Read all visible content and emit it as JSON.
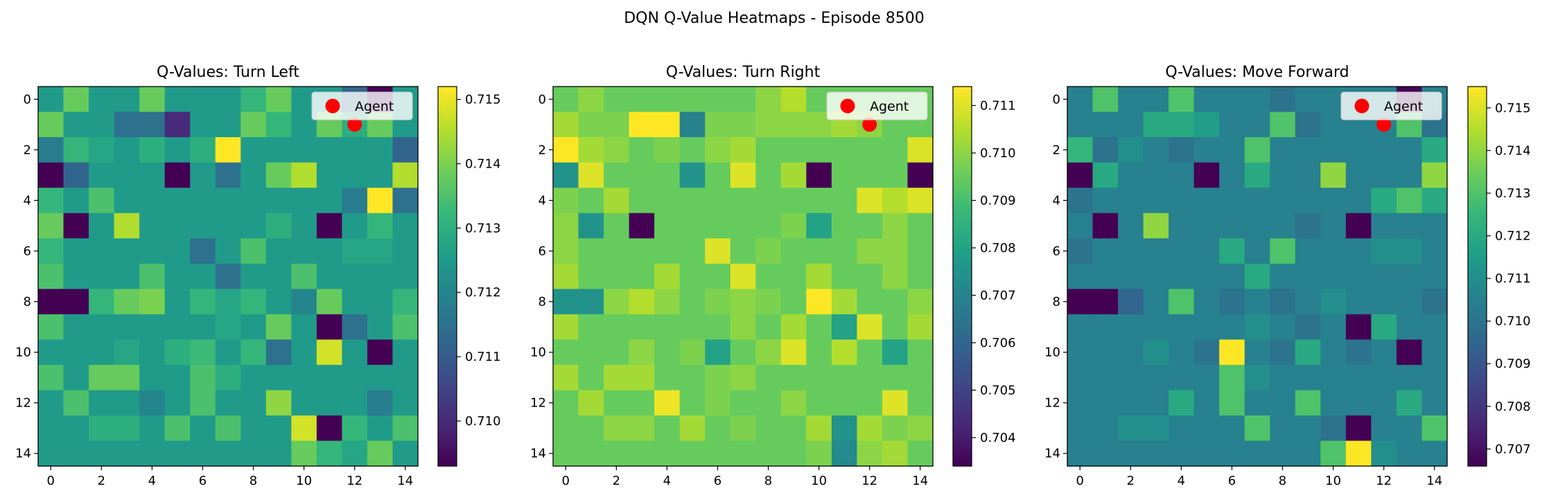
{
  "suptitle": "DQN Q-Value Heatmaps - Episode 8500",
  "legend_label": "Agent",
  "colors": {
    "agent_marker": "#ff0000",
    "frame": "#000000",
    "colormap": "viridis"
  },
  "chart_data": [
    {
      "type": "heatmap",
      "title": "Q-Values: Turn Left",
      "xlabel": "",
      "ylabel": "",
      "x_ticks": [
        0,
        2,
        4,
        6,
        8,
        10,
        12,
        14
      ],
      "y_ticks": [
        0,
        2,
        4,
        6,
        8,
        10,
        12,
        14
      ],
      "colorbar_ticks": [
        0.71,
        0.711,
        0.712,
        0.713,
        0.714,
        0.715
      ],
      "colorbar_ticklabels": [
        "0.710",
        "0.711",
        "0.712",
        "0.713",
        "0.714",
        "0.715"
      ],
      "vmin": 0.7093,
      "vmax": 0.7152,
      "agent_position": {
        "row": 1,
        "col": 12
      },
      "legend": {
        "entries": [
          "Agent"
        ],
        "placement": "upper right"
      },
      "values": [
        [
          0.7125,
          0.7138,
          0.7125,
          0.7125,
          0.7138,
          0.7125,
          0.7125,
          0.7125,
          0.7132,
          0.7138,
          0.7125,
          0.7125,
          0.7112,
          0.7093,
          0.7125
        ],
        [
          0.7138,
          0.7125,
          0.7125,
          0.7115,
          0.7115,
          0.71,
          0.7125,
          0.7125,
          0.7138,
          0.7132,
          0.7125,
          0.7138,
          0.713,
          0.7138,
          0.7125
        ],
        [
          0.7118,
          0.7132,
          0.7128,
          0.7125,
          0.713,
          0.7125,
          0.713,
          0.7152,
          0.7125,
          0.7125,
          0.7125,
          0.7125,
          0.7125,
          0.7125,
          0.7112
        ],
        [
          0.7093,
          0.7112,
          0.7125,
          0.7125,
          0.7125,
          0.7093,
          0.7125,
          0.7115,
          0.7125,
          0.7138,
          0.7145,
          0.7125,
          0.7125,
          0.7125,
          0.7145
        ],
        [
          0.7132,
          0.7125,
          0.7135,
          0.7125,
          0.7125,
          0.7125,
          0.7125,
          0.7125,
          0.7125,
          0.7125,
          0.7125,
          0.7125,
          0.7118,
          0.7152,
          0.7115
        ],
        [
          0.7138,
          0.7093,
          0.7125,
          0.7145,
          0.7125,
          0.7125,
          0.7125,
          0.7125,
          0.7125,
          0.713,
          0.7125,
          0.7093,
          0.7125,
          0.7132,
          0.7125
        ],
        [
          0.7132,
          0.7125,
          0.7125,
          0.7125,
          0.7125,
          0.7125,
          0.7115,
          0.7125,
          0.7135,
          0.7125,
          0.7125,
          0.7125,
          0.7128,
          0.7128,
          0.7125
        ],
        [
          0.7135,
          0.7125,
          0.7125,
          0.7125,
          0.7135,
          0.7125,
          0.7125,
          0.7115,
          0.7125,
          0.7125,
          0.7135,
          0.7125,
          0.7125,
          0.7125,
          0.7125
        ],
        [
          0.7093,
          0.7093,
          0.7132,
          0.7138,
          0.714,
          0.7125,
          0.7132,
          0.7128,
          0.7132,
          0.7125,
          0.712,
          0.7138,
          0.7125,
          0.7125,
          0.7132
        ],
        [
          0.7135,
          0.7125,
          0.7125,
          0.7125,
          0.7125,
          0.7125,
          0.7125,
          0.7128,
          0.7125,
          0.7138,
          0.7125,
          0.7093,
          0.7115,
          0.7125,
          0.7135
        ],
        [
          0.7125,
          0.7125,
          0.7125,
          0.7128,
          0.7125,
          0.713,
          0.7133,
          0.7125,
          0.7132,
          0.7115,
          0.7125,
          0.7148,
          0.7125,
          0.7093,
          0.7125
        ],
        [
          0.7135,
          0.7125,
          0.7138,
          0.7138,
          0.7125,
          0.7125,
          0.7135,
          0.713,
          0.7125,
          0.7125,
          0.7125,
          0.7125,
          0.7125,
          0.7125,
          0.7125
        ],
        [
          0.7125,
          0.7135,
          0.7125,
          0.7125,
          0.712,
          0.7125,
          0.7135,
          0.7125,
          0.7125,
          0.7142,
          0.7125,
          0.7125,
          0.7125,
          0.7118,
          0.7125
        ],
        [
          0.7125,
          0.7125,
          0.713,
          0.713,
          0.7125,
          0.7135,
          0.7125,
          0.7135,
          0.7125,
          0.7125,
          0.7148,
          0.7093,
          0.7132,
          0.7125,
          0.7135
        ],
        [
          0.7125,
          0.7125,
          0.7125,
          0.7125,
          0.7125,
          0.7125,
          0.7125,
          0.7125,
          0.7125,
          0.7125,
          0.7138,
          0.7132,
          0.7128,
          0.7138,
          0.7125
        ]
      ]
    },
    {
      "type": "heatmap",
      "title": "Q-Values: Turn Right",
      "xlabel": "",
      "ylabel": "",
      "x_ticks": [
        0,
        2,
        4,
        6,
        8,
        10,
        12,
        14
      ],
      "y_ticks": [
        0,
        2,
        4,
        6,
        8,
        10,
        12,
        14
      ],
      "colorbar_ticks": [
        0.704,
        0.705,
        0.706,
        0.707,
        0.708,
        0.709,
        0.71,
        0.711
      ],
      "colorbar_ticklabels": [
        "0.704",
        "0.705",
        "0.706",
        "0.707",
        "0.708",
        "0.709",
        "0.710",
        "0.711"
      ],
      "vmin": 0.7034,
      "vmax": 0.7114,
      "agent_position": {
        "row": 1,
        "col": 12
      },
      "legend": {
        "entries": [
          "Agent"
        ],
        "placement": "upper right"
      },
      "values": [
        [
          0.7095,
          0.71,
          0.7095,
          0.7095,
          0.7095,
          0.7095,
          0.7095,
          0.7095,
          0.71,
          0.7105,
          0.7095,
          0.7095,
          0.7095,
          0.7095,
          0.7095
        ],
        [
          0.7103,
          0.7098,
          0.7098,
          0.7114,
          0.7114,
          0.707,
          0.7098,
          0.7098,
          0.71,
          0.71,
          0.71,
          0.7103,
          0.71,
          0.7095,
          0.7095
        ],
        [
          0.7114,
          0.7103,
          0.71,
          0.7095,
          0.7098,
          0.7095,
          0.71,
          0.7103,
          0.7095,
          0.7095,
          0.7095,
          0.7095,
          0.7095,
          0.7095,
          0.711
        ],
        [
          0.7075,
          0.711,
          0.7095,
          0.7095,
          0.7095,
          0.7075,
          0.7095,
          0.711,
          0.7095,
          0.7103,
          0.7034,
          0.7095,
          0.7095,
          0.7095,
          0.7034
        ],
        [
          0.7098,
          0.7095,
          0.7103,
          0.7095,
          0.7095,
          0.7095,
          0.7095,
          0.7095,
          0.7095,
          0.7095,
          0.7095,
          0.7095,
          0.711,
          0.7105,
          0.711
        ],
        [
          0.71,
          0.7075,
          0.7095,
          0.7034,
          0.7095,
          0.7095,
          0.7095,
          0.7095,
          0.7095,
          0.7098,
          0.708,
          0.7095,
          0.7095,
          0.71,
          0.7095
        ],
        [
          0.71,
          0.7095,
          0.7095,
          0.7095,
          0.7095,
          0.7095,
          0.711,
          0.7095,
          0.7098,
          0.7095,
          0.7095,
          0.7095,
          0.71,
          0.71,
          0.7095
        ],
        [
          0.7103,
          0.7095,
          0.7095,
          0.7095,
          0.7103,
          0.7095,
          0.7095,
          0.711,
          0.7095,
          0.7095,
          0.7103,
          0.7095,
          0.7095,
          0.71,
          0.7095
        ],
        [
          0.7075,
          0.7075,
          0.71,
          0.7105,
          0.71,
          0.7095,
          0.7098,
          0.71,
          0.7098,
          0.7095,
          0.7114,
          0.7103,
          0.7095,
          0.7095,
          0.71
        ],
        [
          0.7103,
          0.7095,
          0.7095,
          0.7095,
          0.7095,
          0.7095,
          0.7095,
          0.71,
          0.7095,
          0.7103,
          0.7095,
          0.708,
          0.711,
          0.7095,
          0.7103
        ],
        [
          0.7095,
          0.7095,
          0.7095,
          0.71,
          0.7095,
          0.7098,
          0.708,
          0.7095,
          0.71,
          0.711,
          0.7095,
          0.7105,
          0.7095,
          0.708,
          0.7095
        ],
        [
          0.7103,
          0.7095,
          0.7103,
          0.7103,
          0.7095,
          0.7095,
          0.7098,
          0.71,
          0.7095,
          0.7095,
          0.7095,
          0.7095,
          0.7095,
          0.7095,
          0.7095
        ],
        [
          0.7095,
          0.7103,
          0.7095,
          0.7095,
          0.7112,
          0.7095,
          0.7098,
          0.7095,
          0.7095,
          0.71,
          0.7095,
          0.7095,
          0.7095,
          0.711,
          0.7095
        ],
        [
          0.7095,
          0.7095,
          0.71,
          0.71,
          0.7095,
          0.7103,
          0.7095,
          0.7098,
          0.7095,
          0.7095,
          0.7103,
          0.7075,
          0.7103,
          0.7098,
          0.71
        ],
        [
          0.7095,
          0.7095,
          0.7095,
          0.7095,
          0.7095,
          0.7095,
          0.7095,
          0.7095,
          0.7095,
          0.7095,
          0.7098,
          0.7072,
          0.71,
          0.7103,
          0.7095
        ]
      ]
    },
    {
      "type": "heatmap",
      "title": "Q-Values: Move Forward",
      "xlabel": "",
      "ylabel": "",
      "x_ticks": [
        0,
        2,
        4,
        6,
        8,
        10,
        12,
        14
      ],
      "y_ticks": [
        0,
        2,
        4,
        6,
        8,
        10,
        12,
        14
      ],
      "colorbar_ticks": [
        0.707,
        0.708,
        0.709,
        0.71,
        0.711,
        0.712,
        0.713,
        0.714,
        0.715
      ],
      "colorbar_ticklabels": [
        "0.707",
        "0.708",
        "0.709",
        "0.710",
        "0.711",
        "0.712",
        "0.713",
        "0.714",
        "0.715"
      ],
      "vmin": 0.7066,
      "vmax": 0.7155,
      "agent_position": {
        "row": 1,
        "col": 12
      },
      "legend": {
        "entries": [
          "Agent"
        ],
        "placement": "upper right"
      },
      "values": [
        [
          0.7105,
          0.713,
          0.7105,
          0.7105,
          0.713,
          0.7105,
          0.7105,
          0.7105,
          0.71,
          0.7105,
          0.7105,
          0.7105,
          0.7105,
          0.7066,
          0.7105
        ],
        [
          0.7105,
          0.7105,
          0.7105,
          0.712,
          0.712,
          0.7115,
          0.7105,
          0.7105,
          0.713,
          0.71,
          0.7105,
          0.7105,
          0.7105,
          0.713,
          0.71
        ],
        [
          0.7125,
          0.71,
          0.711,
          0.7105,
          0.71,
          0.7105,
          0.7105,
          0.713,
          0.7105,
          0.7105,
          0.7105,
          0.7105,
          0.7105,
          0.7105,
          0.712
        ],
        [
          0.7066,
          0.712,
          0.7105,
          0.7105,
          0.7105,
          0.7066,
          0.7105,
          0.712,
          0.7105,
          0.7105,
          0.714,
          0.7105,
          0.7105,
          0.7105,
          0.714
        ],
        [
          0.71,
          0.7105,
          0.7105,
          0.7105,
          0.7105,
          0.7105,
          0.7105,
          0.7105,
          0.7105,
          0.7105,
          0.7105,
          0.7105,
          0.712,
          0.713,
          0.712
        ],
        [
          0.7105,
          0.7066,
          0.7105,
          0.714,
          0.7105,
          0.7105,
          0.7105,
          0.7105,
          0.7105,
          0.71,
          0.7105,
          0.7066,
          0.7105,
          0.7105,
          0.7105
        ],
        [
          0.71,
          0.7105,
          0.7105,
          0.7105,
          0.7105,
          0.7105,
          0.712,
          0.7105,
          0.713,
          0.7105,
          0.7105,
          0.7105,
          0.711,
          0.711,
          0.7105
        ],
        [
          0.7105,
          0.7105,
          0.7105,
          0.7105,
          0.7105,
          0.7105,
          0.7105,
          0.712,
          0.7105,
          0.7105,
          0.7105,
          0.7105,
          0.7105,
          0.7105,
          0.7105
        ],
        [
          0.7066,
          0.7066,
          0.7095,
          0.7105,
          0.713,
          0.7105,
          0.71,
          0.7105,
          0.71,
          0.7105,
          0.711,
          0.7105,
          0.7105,
          0.7105,
          0.71
        ],
        [
          0.7105,
          0.7105,
          0.7105,
          0.7105,
          0.7105,
          0.7105,
          0.7105,
          0.711,
          0.7105,
          0.71,
          0.7105,
          0.7066,
          0.712,
          0.7105,
          0.7105
        ],
        [
          0.7105,
          0.7105,
          0.7105,
          0.711,
          0.7105,
          0.71,
          0.7155,
          0.7105,
          0.71,
          0.712,
          0.7105,
          0.71,
          0.7105,
          0.7066,
          0.7105
        ],
        [
          0.7105,
          0.7105,
          0.7105,
          0.7105,
          0.7105,
          0.7105,
          0.713,
          0.711,
          0.7105,
          0.7105,
          0.7105,
          0.7105,
          0.7105,
          0.7105,
          0.7105
        ],
        [
          0.7105,
          0.7105,
          0.7105,
          0.7105,
          0.712,
          0.7105,
          0.713,
          0.7105,
          0.7105,
          0.713,
          0.7105,
          0.7105,
          0.7105,
          0.712,
          0.7105
        ],
        [
          0.7105,
          0.7105,
          0.711,
          0.711,
          0.7105,
          0.7105,
          0.7105,
          0.713,
          0.7105,
          0.7105,
          0.71,
          0.7066,
          0.7105,
          0.7105,
          0.713
        ],
        [
          0.7105,
          0.7105,
          0.7105,
          0.7105,
          0.7105,
          0.7105,
          0.7105,
          0.7105,
          0.7105,
          0.7105,
          0.713,
          0.7155,
          0.711,
          0.7105,
          0.7105
        ]
      ]
    }
  ]
}
